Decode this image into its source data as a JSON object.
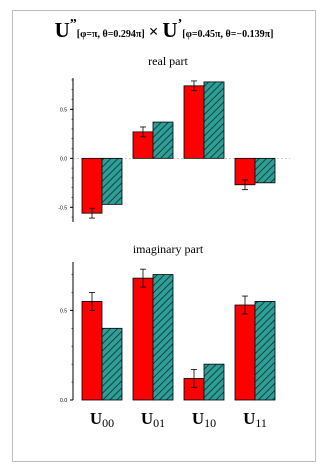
{
  "title": {
    "left_op": "U",
    "left_sup": "”",
    "left_params": "[φ=π, θ=0.294π]",
    "times": "×",
    "right_op": "U",
    "right_sup": "’",
    "right_params": "[φ=0.45π, θ=−0.139π]"
  },
  "colors": {
    "experimental": "#ff0000",
    "theoretical": "#2e9e96",
    "hatch": "#0b3b38",
    "axis": "#000000",
    "frame": "#bdbdbd"
  },
  "chart_data": [
    {
      "type": "bar",
      "title": "real part",
      "categories": [
        "U00",
        "U01",
        "U10",
        "U11"
      ],
      "ylim": [
        -0.65,
        0.82
      ],
      "yticks": [
        -0.5,
        0.0,
        0.5
      ],
      "ytick_labels": [
        "-0.5",
        "0.0",
        "0.5"
      ],
      "series": [
        {
          "values": [
            -0.56,
            0.27,
            0.74,
            -0.27
          ],
          "errors": [
            0.05,
            0.05,
            0.05,
            0.05
          ],
          "style": "solid"
        },
        {
          "values": [
            -0.47,
            0.37,
            0.78,
            -0.25
          ],
          "style": "hatched"
        }
      ],
      "grid": false
    },
    {
      "type": "bar",
      "title": "imaginary part",
      "categories": [
        "U00",
        "U01",
        "U10",
        "U11"
      ],
      "ylim": [
        0.0,
        0.77
      ],
      "yticks": [
        0.0,
        0.5
      ],
      "ytick_labels": [
        "0.0",
        "0.5"
      ],
      "series": [
        {
          "values": [
            0.55,
            0.68,
            0.12,
            0.53
          ],
          "errors": [
            0.05,
            0.05,
            0.05,
            0.05
          ],
          "style": "solid"
        },
        {
          "values": [
            0.4,
            0.7,
            0.2,
            0.55
          ],
          "style": "hatched"
        }
      ],
      "grid": false
    }
  ],
  "x_labels": [
    {
      "main": "U",
      "sub": "00"
    },
    {
      "main": "U",
      "sub": "01"
    },
    {
      "main": "U",
      "sub": "10"
    },
    {
      "main": "U",
      "sub": "11"
    }
  ]
}
